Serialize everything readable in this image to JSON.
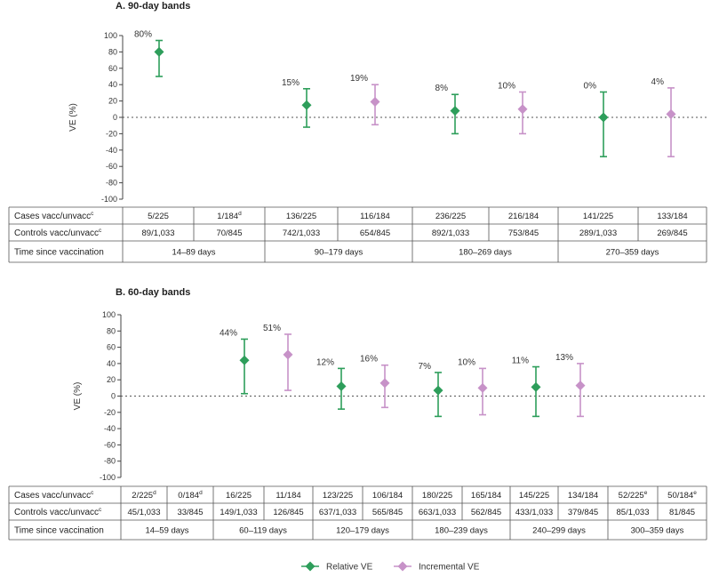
{
  "chart_data": [
    {
      "type": "scatter",
      "title": "A. 90-day bands",
      "ylabel": "VE (%)",
      "ylim": [
        -100,
        100
      ],
      "yticks": [
        100,
        80,
        60,
        40,
        20,
        0,
        -20,
        -40,
        -60,
        -80,
        -100
      ],
      "points": [
        {
          "series": "Relative VE",
          "value": 80,
          "lower": 50,
          "upper": 94,
          "label": "80%"
        },
        {
          "series": "Relative VE",
          "value": 15,
          "lower": -12,
          "upper": 35,
          "label": "15%"
        },
        {
          "series": "Incremental VE",
          "value": 19,
          "lower": -9,
          "upper": 40,
          "label": "19%"
        },
        {
          "series": "Relative VE",
          "value": 8,
          "lower": -20,
          "upper": 28,
          "label": "8%"
        },
        {
          "series": "Incremental VE",
          "value": 10,
          "lower": -20,
          "upper": 31,
          "label": "10%"
        },
        {
          "series": "Relative VE",
          "value": 0,
          "lower": -48,
          "upper": 31,
          "label": "0%"
        },
        {
          "series": "Incremental VE",
          "value": 4,
          "lower": -48,
          "upper": 36,
          "label": "4%"
        }
      ],
      "table": {
        "row_labels": [
          "Cases vacc/unvacc",
          "Controls vacc/unvacc",
          "Time since vaccination"
        ],
        "cases": [
          "5/225",
          "1/184",
          "136/225",
          "116/184",
          "236/225",
          "216/184",
          "141/225",
          "133/184"
        ],
        "cases_sup": [
          "",
          "d",
          "",
          "",
          "",
          "",
          "",
          ""
        ],
        "controls": [
          "89/1,033",
          "70/845",
          "742/1,033",
          "654/845",
          "892/1,033",
          "753/845",
          "289/1,033",
          "269/845"
        ],
        "bands": [
          "14–89 days",
          "90–179 days",
          "180–269 days",
          "270–359 days"
        ]
      }
    },
    {
      "type": "scatter",
      "title": "B. 60-day bands",
      "ylabel": "VE (%)",
      "ylim": [
        -100,
        100
      ],
      "yticks": [
        100,
        80,
        60,
        40,
        20,
        0,
        -20,
        -40,
        -60,
        -80,
        -100
      ],
      "points": [
        {
          "series": "Relative VE",
          "value": 44,
          "lower": 3,
          "upper": 70,
          "label": "44%"
        },
        {
          "series": "Incremental VE",
          "value": 51,
          "lower": 7,
          "upper": 76,
          "label": "51%"
        },
        {
          "series": "Relative VE",
          "value": 12,
          "lower": -16,
          "upper": 34,
          "label": "12%"
        },
        {
          "series": "Incremental VE",
          "value": 16,
          "lower": -14,
          "upper": 38,
          "label": "16%"
        },
        {
          "series": "Relative VE",
          "value": 7,
          "lower": -25,
          "upper": 29,
          "label": "7%"
        },
        {
          "series": "Incremental VE",
          "value": 10,
          "lower": -23,
          "upper": 34,
          "label": "10%"
        },
        {
          "series": "Relative VE",
          "value": 11,
          "lower": -25,
          "upper": 36,
          "label": "11%"
        },
        {
          "series": "Incremental VE",
          "value": 13,
          "lower": -25,
          "upper": 40,
          "label": "13%"
        }
      ],
      "table": {
        "row_labels": [
          "Cases vacc/unvacc",
          "Controls vacc/unvacc",
          "Time since vaccination"
        ],
        "cases": [
          "2/225",
          "0/184",
          "16/225",
          "11/184",
          "123/225",
          "106/184",
          "180/225",
          "165/184",
          "145/225",
          "134/184",
          "52/225",
          "50/184"
        ],
        "cases_sup": [
          "d",
          "d",
          "",
          "",
          "",
          "",
          "",
          "",
          "",
          "",
          "e",
          "e"
        ],
        "controls": [
          "45/1,033",
          "33/845",
          "149/1,033",
          "126/845",
          "637/1,033",
          "565/845",
          "663/1,033",
          "562/845",
          "433/1,033",
          "379/845",
          "85/1,033",
          "81/845"
        ],
        "bands": [
          "14–59 days",
          "60–119 days",
          "120–179 days",
          "180–239 days",
          "240–299 days",
          "300–359 days"
        ]
      }
    }
  ],
  "row_label_sup": "c",
  "legend": [
    {
      "name": "Relative VE",
      "color": "#2e9e5b"
    },
    {
      "name": "Incremental VE",
      "color": "#c792c8"
    }
  ]
}
